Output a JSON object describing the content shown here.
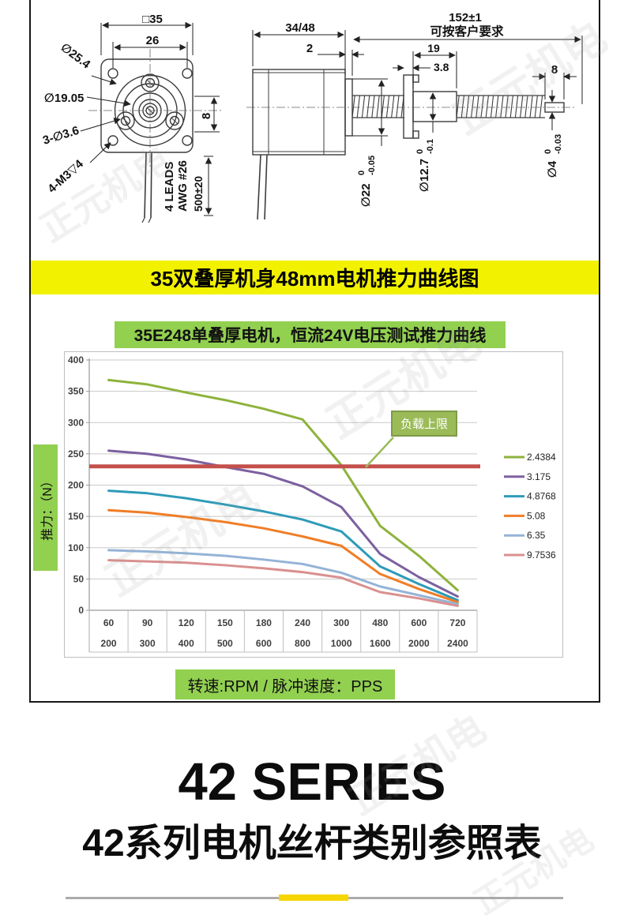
{
  "page": {
    "banner": "35双叠厚机身48mm电机推力曲线图",
    "big_title": "42 SERIES",
    "sub_title": "42系列电机丝杆类别参照表",
    "watermark": "正元机电",
    "accent_yellow": "#F2F200",
    "accent_green": "#92D050"
  },
  "drawing": {
    "front": {
      "dim_square": "□35",
      "dim_bolt_spacing": "26",
      "dim_outer_dia": "∅25.4",
      "dim_pilot_dia": "∅19.05",
      "dim_ear_holes": "3-∅3.6",
      "dim_mount_holes": "4-M3▽4",
      "dim_offset": "8",
      "leads_line1": "4 LEADS",
      "leads_line2": "AWG #26",
      "lead_length": "500±20"
    },
    "side": {
      "dim_body_len": "34/48",
      "dim_boss_len": "2",
      "dim_total_len": "152±1",
      "dim_note": "可按客户要求",
      "dim_nut_len": "19",
      "dim_flange_thk": "3.8",
      "dim_tip_len": "8",
      "d22": {
        "main": "∅22",
        "tol_top": "0",
        "tol_bot": "-0.05"
      },
      "d127": {
        "main": "∅12.7",
        "tol_top": "0",
        "tol_bot": "-0.1"
      },
      "d4": {
        "main": "∅4",
        "tol_top": "0",
        "tol_bot": "-0.03"
      }
    }
  },
  "chart_data": {
    "type": "line",
    "title": "35E248单叠厚电机，恒流24V电压测试推力曲线",
    "ylabel": "推力：（N）",
    "xlabel": "转速:RPM / 脉冲速度：PPS",
    "ylim": [
      0,
      400
    ],
    "ytick_step": 50,
    "grid": true,
    "legend_position": "right",
    "x_rpm": [
      60,
      90,
      120,
      150,
      180,
      240,
      300,
      480,
      600,
      720
    ],
    "x_pps": [
      200,
      300,
      400,
      500,
      600,
      800,
      1000,
      1600,
      2000,
      2400
    ],
    "series": [
      {
        "name": "2.4384",
        "color": "#8DB33C",
        "values": [
          368,
          361,
          348,
          336,
          322,
          305,
          232,
          135,
          87,
          32
        ]
      },
      {
        "name": "3.175",
        "color": "#7C60A0",
        "values": [
          255,
          250,
          241,
          229,
          218,
          198,
          165,
          90,
          53,
          22
        ]
      },
      {
        "name": "4.8768",
        "color": "#2E9BB8",
        "values": [
          191,
          187,
          179,
          169,
          158,
          145,
          126,
          70,
          42,
          16
        ]
      },
      {
        "name": "5.08",
        "color": "#F07D26",
        "values": [
          160,
          156,
          149,
          141,
          131,
          118,
          103,
          58,
          34,
          13
        ]
      },
      {
        "name": "6.35",
        "color": "#95B3D7",
        "values": [
          96,
          94,
          91,
          87,
          81,
          74,
          60,
          38,
          24,
          10
        ]
      },
      {
        "name": "9.7536",
        "color": "#D9908F",
        "values": [
          80,
          78,
          76,
          72,
          67,
          61,
          52,
          29,
          19,
          7
        ]
      }
    ],
    "limit_line": {
      "label": "负载上限",
      "value": 230,
      "color": "#C4504B",
      "callout_fill": "#9BBB59",
      "callout_border": "#7E9A48"
    }
  }
}
